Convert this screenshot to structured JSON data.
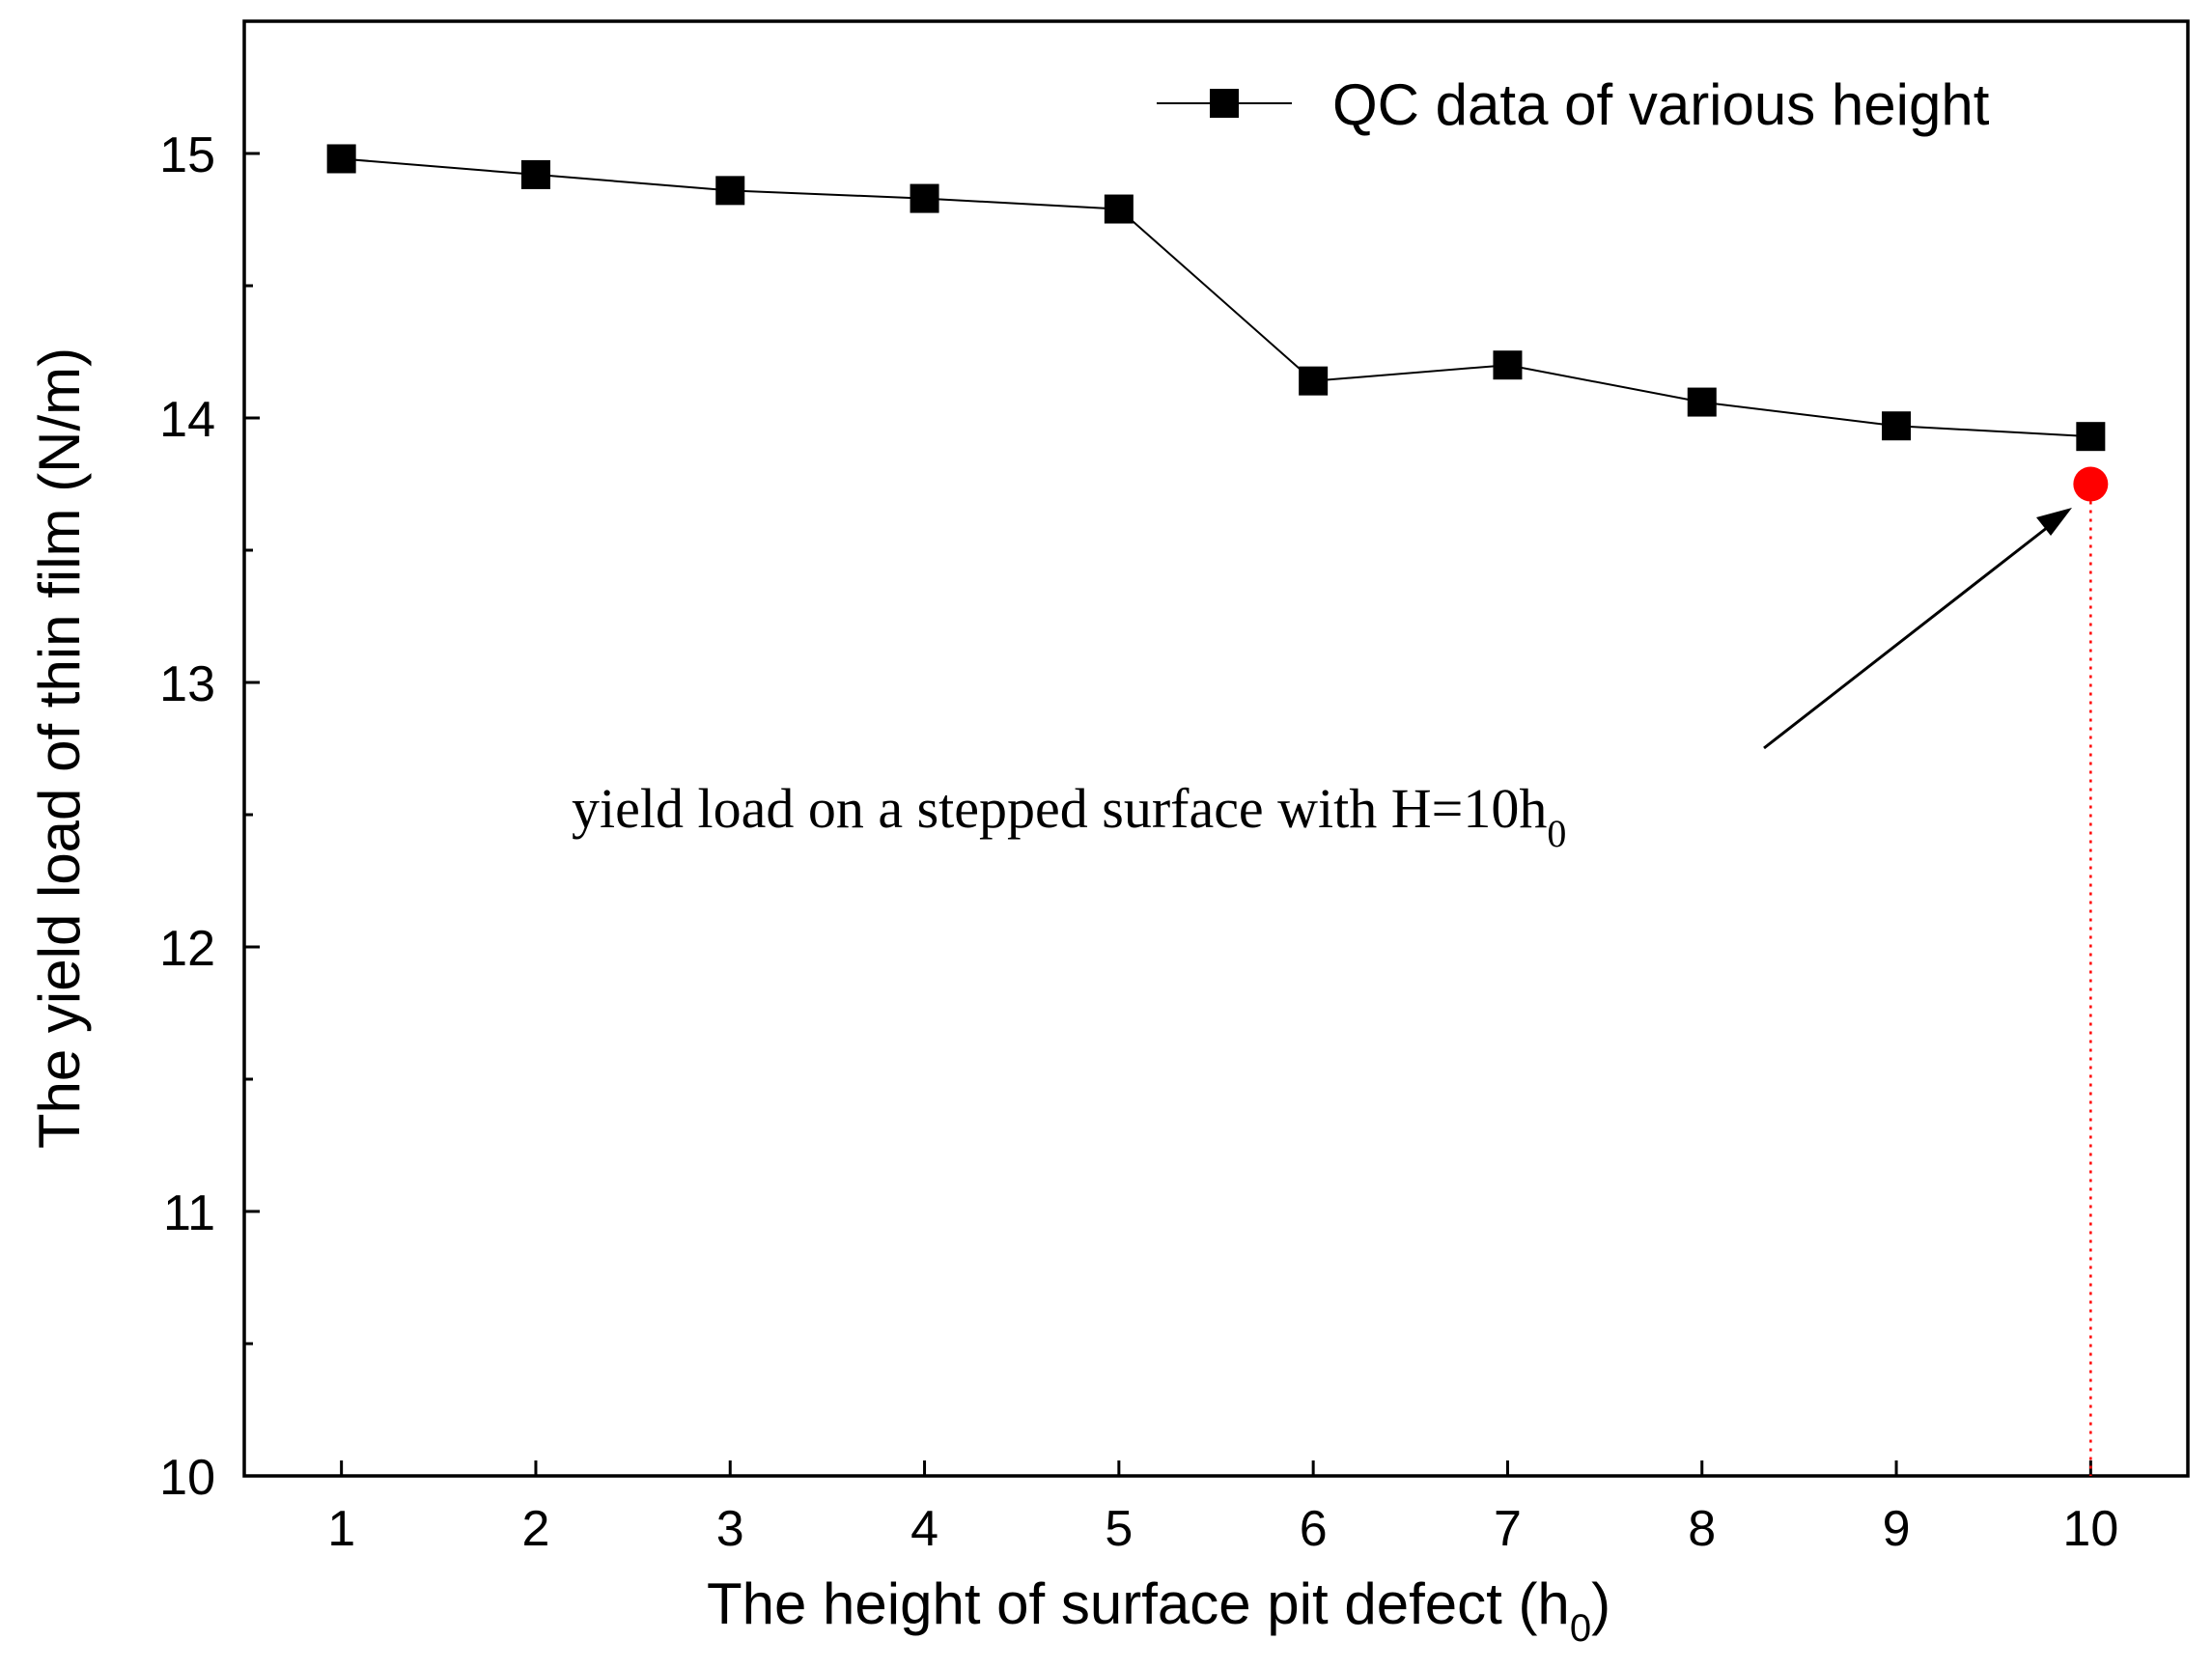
{
  "chart_data": {
    "type": "line",
    "xlabel": "The height of surface pit defect (h",
    "xlabel_sub": "0",
    "xlabel_end": ")",
    "ylabel": "The yield load of thin film (N/m)",
    "x": [
      1,
      2,
      3,
      4,
      5,
      6,
      7,
      8,
      9,
      10
    ],
    "xticks": [
      "1",
      "2",
      "3",
      "4",
      "5",
      "6",
      "7",
      "8",
      "9",
      "10"
    ],
    "yticks": [
      10,
      11,
      12,
      13,
      14,
      15
    ],
    "yminor": [
      10.5,
      11.5,
      12.5,
      13.5,
      14.5
    ],
    "xlim": [
      0.5,
      10.5
    ],
    "ylim": [
      10,
      15.5
    ],
    "grid": false,
    "legend_position": "top-right",
    "series": [
      {
        "name": "QC data of various height",
        "x": [
          1,
          2,
          3,
          4,
          5,
          6,
          7,
          8,
          9,
          10
        ],
        "values": [
          14.98,
          14.92,
          14.86,
          14.83,
          14.79,
          14.14,
          14.2,
          14.06,
          13.97,
          13.93
        ],
        "color": "#000000",
        "marker": "square"
      }
    ],
    "reference_point": {
      "x": 10,
      "y": 13.75,
      "color": "#ff0000"
    },
    "annotation": {
      "text": "yield load on a stepped surface with H=10h",
      "sub": "0"
    }
  }
}
